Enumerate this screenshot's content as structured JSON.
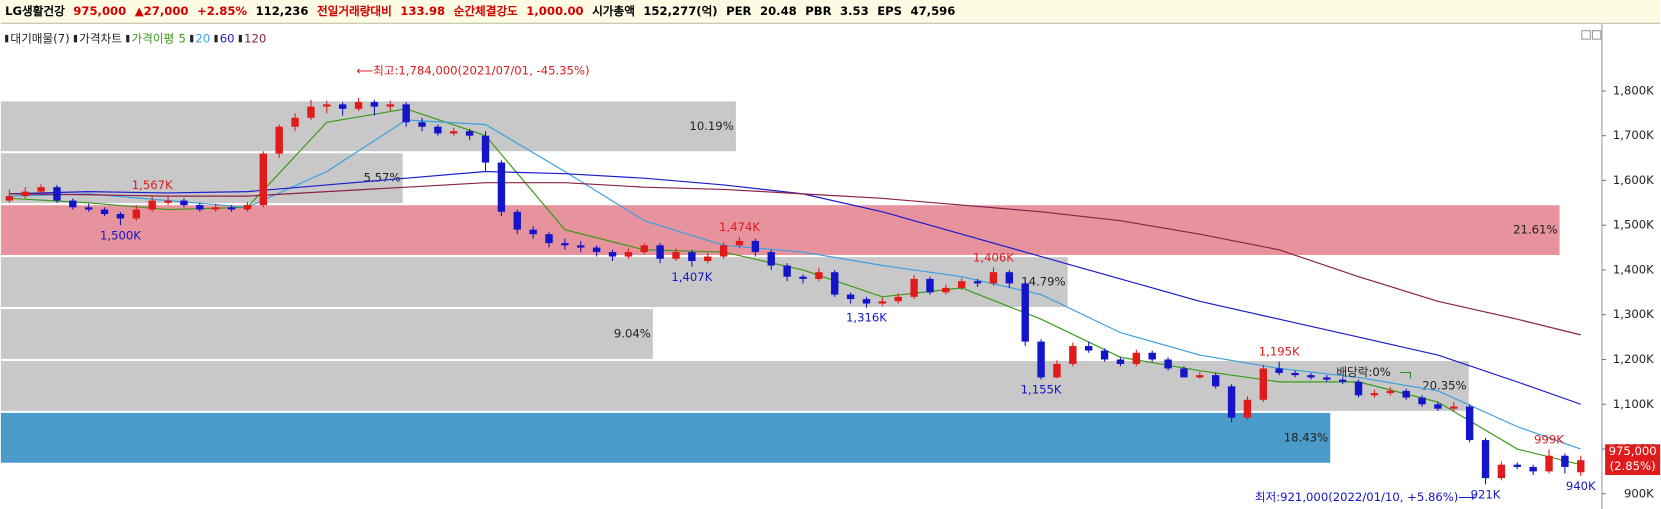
{
  "header": {
    "items": [
      {
        "text": "LG생활건강",
        "color": "#000000"
      },
      {
        "text": "975,000",
        "color": "#d40000"
      },
      {
        "text": "▲27,000",
        "color": "#d40000"
      },
      {
        "text": "+2.85%",
        "color": "#d40000"
      },
      {
        "text": "112,236",
        "color": "#000000"
      },
      {
        "text": "전일거래량대비",
        "color": "#d40000"
      },
      {
        "text": "133.98",
        "color": "#d40000"
      },
      {
        "text": "순간체결강도",
        "color": "#d40000"
      },
      {
        "text": "1,000.00",
        "color": "#d40000"
      },
      {
        "text": "시가총액",
        "color": "#000000"
      },
      {
        "text": "152,277(억)",
        "color": "#000000"
      },
      {
        "text": "PER",
        "color": "#000000"
      },
      {
        "text": "20.48",
        "color": "#000000"
      },
      {
        "text": "PBR",
        "color": "#000000"
      },
      {
        "text": "3.53",
        "color": "#000000"
      },
      {
        "text": "EPS",
        "color": "#000000"
      },
      {
        "text": "47,596",
        "color": "#000000"
      }
    ]
  },
  "chart_data": {
    "type": "candlestick",
    "legend_prefix": [
      "대기매물(7)",
      "가격차트",
      "가격이평"
    ],
    "ylim": [
      866,
      1892
    ],
    "yticks": [
      {
        "value": 900,
        "label": "900K"
      },
      {
        "value": 1000,
        "label": "1,000K"
      },
      {
        "value": 1100,
        "label": "1,100K"
      },
      {
        "value": 1200,
        "label": "1,200K"
      },
      {
        "value": 1300,
        "label": "1,300K"
      },
      {
        "value": 1400,
        "label": "1,400K"
      },
      {
        "value": 1500,
        "label": "1,500K"
      },
      {
        "value": 1600,
        "label": "1,600K"
      },
      {
        "value": 1700,
        "label": "1,700K"
      },
      {
        "value": 1800,
        "label": "1,800K"
      }
    ],
    "up_color": "#e01b1b",
    "down_color": "#1414c8",
    "ohlc": [
      [
        1555,
        1580,
        1550,
        1565
      ],
      [
        1565,
        1585,
        1560,
        1575
      ],
      [
        1575,
        1592,
        1570,
        1585
      ],
      [
        1585,
        1590,
        1550,
        1555
      ],
      [
        1555,
        1560,
        1535,
        1540
      ],
      [
        1540,
        1548,
        1530,
        1535
      ],
      [
        1535,
        1540,
        1520,
        1525
      ],
      [
        1525,
        1530,
        1500,
        1515
      ],
      [
        1515,
        1545,
        1510,
        1535
      ],
      [
        1535,
        1567,
        1530,
        1555
      ],
      [
        1550,
        1565,
        1545,
        1555
      ],
      [
        1555,
        1560,
        1540,
        1545
      ],
      [
        1545,
        1550,
        1530,
        1535
      ],
      [
        1535,
        1548,
        1530,
        1540
      ],
      [
        1540,
        1545,
        1530,
        1535
      ],
      [
        1535,
        1552,
        1530,
        1545
      ],
      [
        1545,
        1665,
        1540,
        1660
      ],
      [
        1660,
        1725,
        1650,
        1720
      ],
      [
        1720,
        1750,
        1710,
        1740
      ],
      [
        1740,
        1780,
        1735,
        1765
      ],
      [
        1765,
        1778,
        1750,
        1770
      ],
      [
        1770,
        1775,
        1745,
        1760
      ],
      [
        1760,
        1784,
        1755,
        1775
      ],
      [
        1775,
        1780,
        1745,
        1765
      ],
      [
        1765,
        1778,
        1755,
        1770
      ],
      [
        1770,
        1775,
        1720,
        1730
      ],
      [
        1730,
        1740,
        1710,
        1720
      ],
      [
        1720,
        1725,
        1700,
        1705
      ],
      [
        1705,
        1718,
        1700,
        1710
      ],
      [
        1710,
        1715,
        1690,
        1700
      ],
      [
        1700,
        1710,
        1620,
        1640
      ],
      [
        1640,
        1645,
        1520,
        1530
      ],
      [
        1530,
        1535,
        1480,
        1490
      ],
      [
        1490,
        1498,
        1470,
        1480
      ],
      [
        1480,
        1485,
        1450,
        1460
      ],
      [
        1460,
        1470,
        1445,
        1455
      ],
      [
        1455,
        1465,
        1440,
        1450
      ],
      [
        1450,
        1455,
        1430,
        1440
      ],
      [
        1440,
        1445,
        1420,
        1430
      ],
      [
        1430,
        1448,
        1425,
        1440
      ],
      [
        1440,
        1460,
        1435,
        1455
      ],
      [
        1455,
        1460,
        1415,
        1425
      ],
      [
        1425,
        1448,
        1420,
        1440
      ],
      [
        1440,
        1445,
        1407,
        1420
      ],
      [
        1420,
        1438,
        1415,
        1430
      ],
      [
        1430,
        1462,
        1425,
        1455
      ],
      [
        1455,
        1474,
        1450,
        1465
      ],
      [
        1465,
        1470,
        1430,
        1440
      ],
      [
        1440,
        1445,
        1400,
        1410
      ],
      [
        1410,
        1415,
        1375,
        1385
      ],
      [
        1385,
        1390,
        1370,
        1380
      ],
      [
        1380,
        1405,
        1375,
        1395
      ],
      [
        1395,
        1400,
        1340,
        1345
      ],
      [
        1345,
        1350,
        1325,
        1335
      ],
      [
        1335,
        1340,
        1316,
        1325
      ],
      [
        1325,
        1338,
        1320,
        1330
      ],
      [
        1330,
        1348,
        1325,
        1340
      ],
      [
        1340,
        1388,
        1335,
        1380
      ],
      [
        1380,
        1385,
        1345,
        1350
      ],
      [
        1350,
        1368,
        1345,
        1360
      ],
      [
        1360,
        1382,
        1355,
        1375
      ],
      [
        1375,
        1380,
        1362,
        1370
      ],
      [
        1370,
        1406,
        1365,
        1395
      ],
      [
        1395,
        1400,
        1360,
        1370
      ],
      [
        1370,
        1375,
        1230,
        1240
      ],
      [
        1240,
        1245,
        1155,
        1160
      ],
      [
        1160,
        1198,
        1158,
        1190
      ],
      [
        1190,
        1238,
        1185,
        1230
      ],
      [
        1230,
        1240,
        1215,
        1220
      ],
      [
        1220,
        1225,
        1195,
        1200
      ],
      [
        1200,
        1205,
        1185,
        1190
      ],
      [
        1190,
        1222,
        1185,
        1215
      ],
      [
        1215,
        1220,
        1195,
        1200
      ],
      [
        1200,
        1205,
        1175,
        1180
      ],
      [
        1180,
        1185,
        1160,
        1160
      ],
      [
        1160,
        1172,
        1157,
        1165
      ],
      [
        1165,
        1170,
        1135,
        1140
      ],
      [
        1140,
        1145,
        1060,
        1070
      ],
      [
        1070,
        1118,
        1065,
        1110
      ],
      [
        1110,
        1188,
        1105,
        1180
      ],
      [
        1180,
        1195,
        1165,
        1170
      ],
      [
        1170,
        1175,
        1160,
        1165
      ],
      [
        1165,
        1170,
        1155,
        1160
      ],
      [
        1160,
        1165,
        1150,
        1155
      ],
      [
        1155,
        1160,
        1145,
        1150
      ],
      [
        1150,
        1155,
        1115,
        1120
      ],
      [
        1120,
        1132,
        1115,
        1125
      ],
      [
        1125,
        1138,
        1120,
        1130
      ],
      [
        1130,
        1135,
        1110,
        1115
      ],
      [
        1115,
        1120,
        1095,
        1100
      ],
      [
        1100,
        1105,
        1085,
        1090
      ],
      [
        1090,
        1105,
        1085,
        1095
      ],
      [
        1095,
        1100,
        1015,
        1020
      ],
      [
        1020,
        1025,
        921,
        935
      ],
      [
        935,
        972,
        930,
        965
      ],
      [
        965,
        970,
        955,
        960
      ],
      [
        960,
        965,
        942,
        950
      ],
      [
        950,
        999,
        945,
        985
      ],
      [
        985,
        990,
        945,
        960
      ],
      [
        948,
        985,
        940,
        975
      ]
    ],
    "series": [
      {
        "name": "5",
        "color": "#3a9a1a",
        "x": [
          0,
          5,
          10,
          15,
          20,
          25,
          30,
          35,
          40,
          45,
          50,
          55,
          60,
          65,
          70,
          75,
          80,
          85,
          90,
          95,
          99
        ],
        "values": [
          1560,
          1550,
          1535,
          1540,
          1730,
          1760,
          1700,
          1490,
          1445,
          1440,
          1400,
          1340,
          1360,
          1290,
          1205,
          1175,
          1150,
          1150,
          1105,
          1000,
          965
        ]
      },
      {
        "name": "20",
        "color": "#3aa0e0",
        "x": [
          0,
          5,
          10,
          15,
          20,
          25,
          30,
          35,
          40,
          45,
          50,
          55,
          60,
          65,
          70,
          75,
          80,
          85,
          90,
          95,
          99
        ],
        "values": [
          1565,
          1570,
          1555,
          1540,
          1620,
          1735,
          1725,
          1620,
          1510,
          1455,
          1440,
          1410,
          1385,
          1345,
          1260,
          1210,
          1180,
          1160,
          1130,
          1050,
          1000
        ]
      },
      {
        "name": "60",
        "color": "#1c1ccc",
        "x": [
          0,
          5,
          10,
          15,
          20,
          25,
          30,
          35,
          40,
          45,
          50,
          55,
          60,
          65,
          70,
          75,
          80,
          85,
          90,
          95,
          99
        ],
        "values": [
          1570,
          1575,
          1572,
          1575,
          1590,
          1605,
          1620,
          1615,
          1605,
          1590,
          1570,
          1530,
          1480,
          1430,
          1380,
          1330,
          1290,
          1250,
          1210,
          1150,
          1100
        ]
      },
      {
        "name": "120",
        "color": "#8c2048",
        "x": [
          0,
          5,
          10,
          15,
          20,
          25,
          30,
          35,
          40,
          45,
          50,
          55,
          60,
          65,
          70,
          75,
          80,
          85,
          90,
          95,
          99
        ],
        "values": [
          1570,
          1568,
          1565,
          1565,
          1575,
          1585,
          1595,
          1595,
          1585,
          1580,
          1570,
          1560,
          1545,
          1530,
          1510,
          1480,
          1445,
          1385,
          1330,
          1290,
          1255
        ]
      }
    ],
    "volume_profile": {
      "bounds": [
        1779,
        1663,
        1547,
        1431,
        1315,
        1199,
        1083,
        967
      ],
      "values": [
        10.19,
        5.57,
        21.61,
        14.79,
        9.04,
        20.35,
        18.43
      ],
      "value_labels": [
        "10.19%",
        "5.57%",
        "21.61%",
        "14.79%",
        "9.04%",
        "20.35%",
        "18.43%"
      ],
      "colors": [
        "#c8c8c8",
        "#c8c8c8",
        "#e6939d",
        "#c8c8c8",
        "#c8c8c8",
        "#c8c8c8",
        "#4a9bc9"
      ]
    },
    "high_labels": [
      {
        "value": 1567,
        "label": "1,567K"
      },
      {
        "value": 1474,
        "label": "1,474K"
      },
      {
        "value": 1406,
        "label": "1,406K"
      },
      {
        "value": 1195,
        "label": "1,195K"
      },
      {
        "value": 999,
        "label": "999K"
      }
    ],
    "low_labels": [
      {
        "value": 1500,
        "label": "1,500K"
      },
      {
        "value": 1407,
        "label": "1,407K"
      },
      {
        "value": 1316,
        "label": "1,316K"
      },
      {
        "value": 1155,
        "label": "1,155K"
      },
      {
        "value": 921,
        "label": "921K"
      },
      {
        "value": 940,
        "label": "940K"
      }
    ],
    "high_label_color": "#e01b1b",
    "low_label_color": "#1414c8",
    "max_annotation": "⟵최고:1,784,000(2021/07/01, -45.35%)",
    "min_annotation": "최저:921,000(2022/01/10, +5.86%)⟶",
    "dividend_label": "배당락:0%",
    "current": {
      "value": 975,
      "label": "975,000"
    },
    "current_change": {
      "value": 2.85,
      "label": "(2.85%)"
    }
  }
}
